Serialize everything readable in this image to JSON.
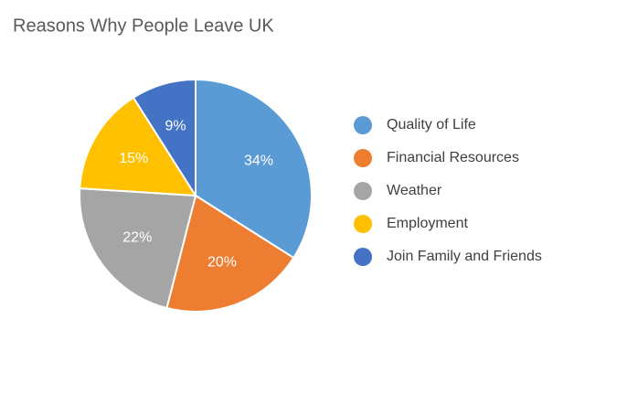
{
  "chart_data": {
    "type": "pie",
    "title": "Reasons Why People Leave UK",
    "categories": [
      "Quality of Life",
      "Financial Resources",
      "Weather",
      "Employment",
      "Join Family and Friends"
    ],
    "values": [
      34,
      20,
      22,
      15,
      9
    ],
    "value_labels": [
      "34%",
      "20%",
      "22%",
      "15%",
      "9%"
    ],
    "colors": [
      "#5b9bd5",
      "#ed7d31",
      "#a5a5a5",
      "#ffc000",
      "#4472c4"
    ],
    "legend": "right"
  }
}
